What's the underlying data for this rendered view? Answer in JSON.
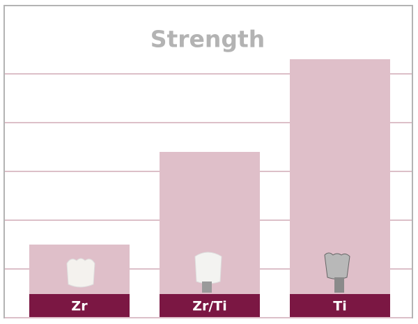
{
  "chart_data": {
    "type": "bar",
    "title": "Strength",
    "categories": [
      "Zr",
      "Zr/Ti",
      "Ti"
    ],
    "values": [
      1.5,
      3.4,
      5.3
    ],
    "color": "#dfbfc9",
    "label_color": "#7b1743",
    "ylim": [
      0,
      6.4
    ],
    "yticks": [
      0,
      1,
      2,
      3,
      4,
      5
    ],
    "grid": true
  }
}
